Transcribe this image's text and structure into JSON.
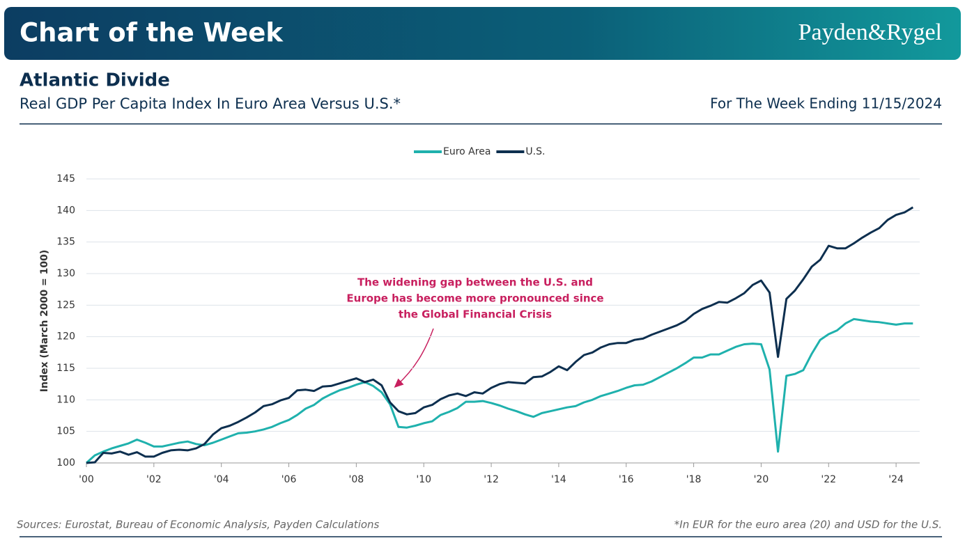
{
  "header": {
    "banner": "Chart of the Week",
    "brand": "Payden&Rygel"
  },
  "chart_data": {
    "type": "line",
    "title": "Atlantic Divide",
    "subtitle": "Real GDP Per Capita Index In Euro Area Versus U.S.*",
    "date_note": "For The Week Ending 11/15/2024",
    "ylabel": "Index (March 2000 = 100)",
    "annotation": [
      "The widening gap between the U.S. and",
      "Europe has become more pronounced since",
      "the Global Financial Crisis"
    ],
    "sources": "Sources: Eurostat, Bureau of Economic Analysis, Payden Calculations",
    "footnote": "*In EUR for the euro area (20) and USD for the U.S.",
    "legend": "top",
    "grid": true,
    "xlim": [
      2000,
      2024.7
    ],
    "xticks": [
      {
        "value": 2000,
        "label": "'00"
      },
      {
        "value": 2002,
        "label": "'02"
      },
      {
        "value": 2004,
        "label": "'04"
      },
      {
        "value": 2006,
        "label": "'06"
      },
      {
        "value": 2008,
        "label": "'08"
      },
      {
        "value": 2010,
        "label": "'10"
      },
      {
        "value": 2012,
        "label": "'12"
      },
      {
        "value": 2014,
        "label": "'14"
      },
      {
        "value": 2016,
        "label": "'16"
      },
      {
        "value": 2018,
        "label": "'18"
      },
      {
        "value": 2020,
        "label": "'20"
      },
      {
        "value": 2022,
        "label": "'22"
      },
      {
        "value": 2024,
        "label": "'24"
      }
    ],
    "ylim": [
      100,
      145
    ],
    "yticks": [
      100,
      105,
      110,
      115,
      120,
      125,
      130,
      135,
      140,
      145
    ],
    "x": [
      2000,
      2000.25,
      2000.5,
      2000.75,
      2001,
      2001.25,
      2001.5,
      2001.75,
      2002,
      2002.25,
      2002.5,
      2002.75,
      2003,
      2003.25,
      2003.5,
      2003.75,
      2004,
      2004.25,
      2004.5,
      2004.75,
      2005,
      2005.25,
      2005.5,
      2005.75,
      2006,
      2006.25,
      2006.5,
      2006.75,
      2007,
      2007.25,
      2007.5,
      2007.75,
      2008,
      2008.25,
      2008.5,
      2008.75,
      2009,
      2009.25,
      2009.5,
      2009.75,
      2010,
      2010.25,
      2010.5,
      2010.75,
      2011,
      2011.25,
      2011.5,
      2011.75,
      2012,
      2012.25,
      2012.5,
      2012.75,
      2013,
      2013.25,
      2013.5,
      2013.75,
      2014,
      2014.25,
      2014.5,
      2014.75,
      2015,
      2015.25,
      2015.5,
      2015.75,
      2016,
      2016.25,
      2016.5,
      2016.75,
      2017,
      2017.25,
      2017.5,
      2017.75,
      2018,
      2018.25,
      2018.5,
      2018.75,
      2019,
      2019.25,
      2019.5,
      2019.75,
      2020,
      2020.25,
      2020.5,
      2020.75,
      2021,
      2021.25,
      2021.5,
      2021.75,
      2022,
      2022.25,
      2022.5,
      2022.75,
      2023,
      2023.25,
      2023.5,
      2023.75,
      2024,
      2024.25,
      2024.5
    ],
    "series": [
      {
        "name": "Euro Area",
        "color": "#1fb1ad",
        "values": [
          100,
          101.2,
          101.8,
          102.3,
          102.7,
          103.1,
          103.7,
          103.2,
          102.6,
          102.6,
          102.9,
          103.2,
          103.4,
          103.0,
          102.8,
          103.2,
          103.7,
          104.2,
          104.7,
          104.8,
          105.0,
          105.3,
          105.7,
          106.3,
          106.8,
          107.6,
          108.6,
          109.2,
          110.2,
          110.9,
          111.5,
          111.9,
          112.4,
          112.8,
          112.2,
          111.2,
          109.3,
          105.7,
          105.6,
          105.9,
          106.3,
          106.6,
          107.6,
          108.1,
          108.7,
          109.7,
          109.7,
          109.8,
          109.5,
          109.1,
          108.6,
          108.2,
          107.7,
          107.3,
          107.9,
          108.2,
          108.5,
          108.8,
          109.0,
          109.6,
          110.0,
          110.6,
          111.0,
          111.4,
          111.9,
          112.3,
          112.4,
          112.9,
          113.6,
          114.3,
          115.0,
          115.8,
          116.7,
          116.7,
          117.2,
          117.2,
          117.8,
          118.4,
          118.8,
          118.9,
          118.8,
          114.8,
          101.8,
          113.8,
          114.1,
          114.7,
          117.3,
          119.5,
          120.4,
          121.0,
          122.1,
          122.8,
          122.6,
          122.4,
          122.3,
          122.1,
          121.9,
          122.1,
          122.1
        ]
      },
      {
        "name": "U.S.",
        "color": "#0d2f4f",
        "values": [
          100,
          100.1,
          101.6,
          101.5,
          101.8,
          101.3,
          101.7,
          101.0,
          101.0,
          101.6,
          102.0,
          102.1,
          102.0,
          102.3,
          103.0,
          104.5,
          105.5,
          105.9,
          106.5,
          107.2,
          108.0,
          109.0,
          109.3,
          109.9,
          110.3,
          111.5,
          111.6,
          111.4,
          112.1,
          112.2,
          112.6,
          113.0,
          113.4,
          112.8,
          113.2,
          112.3,
          109.6,
          108.2,
          107.7,
          107.9,
          108.8,
          109.2,
          110.1,
          110.7,
          111.0,
          110.6,
          111.2,
          111.0,
          111.9,
          112.5,
          112.8,
          112.7,
          112.6,
          113.6,
          113.7,
          114.4,
          115.3,
          114.7,
          116.0,
          117.1,
          117.5,
          118.3,
          118.8,
          119.0,
          119.0,
          119.5,
          119.7,
          120.3,
          120.8,
          121.3,
          121.8,
          122.5,
          123.6,
          124.4,
          124.9,
          125.5,
          125.4,
          126.1,
          126.9,
          128.2,
          128.9,
          127.0,
          116.8,
          126.0,
          127.3,
          129.1,
          131.1,
          132.2,
          134.4,
          134.0,
          134.0,
          134.8,
          135.7,
          136.5,
          137.2,
          138.5,
          139.3,
          139.7,
          140.5
        ]
      }
    ]
  }
}
